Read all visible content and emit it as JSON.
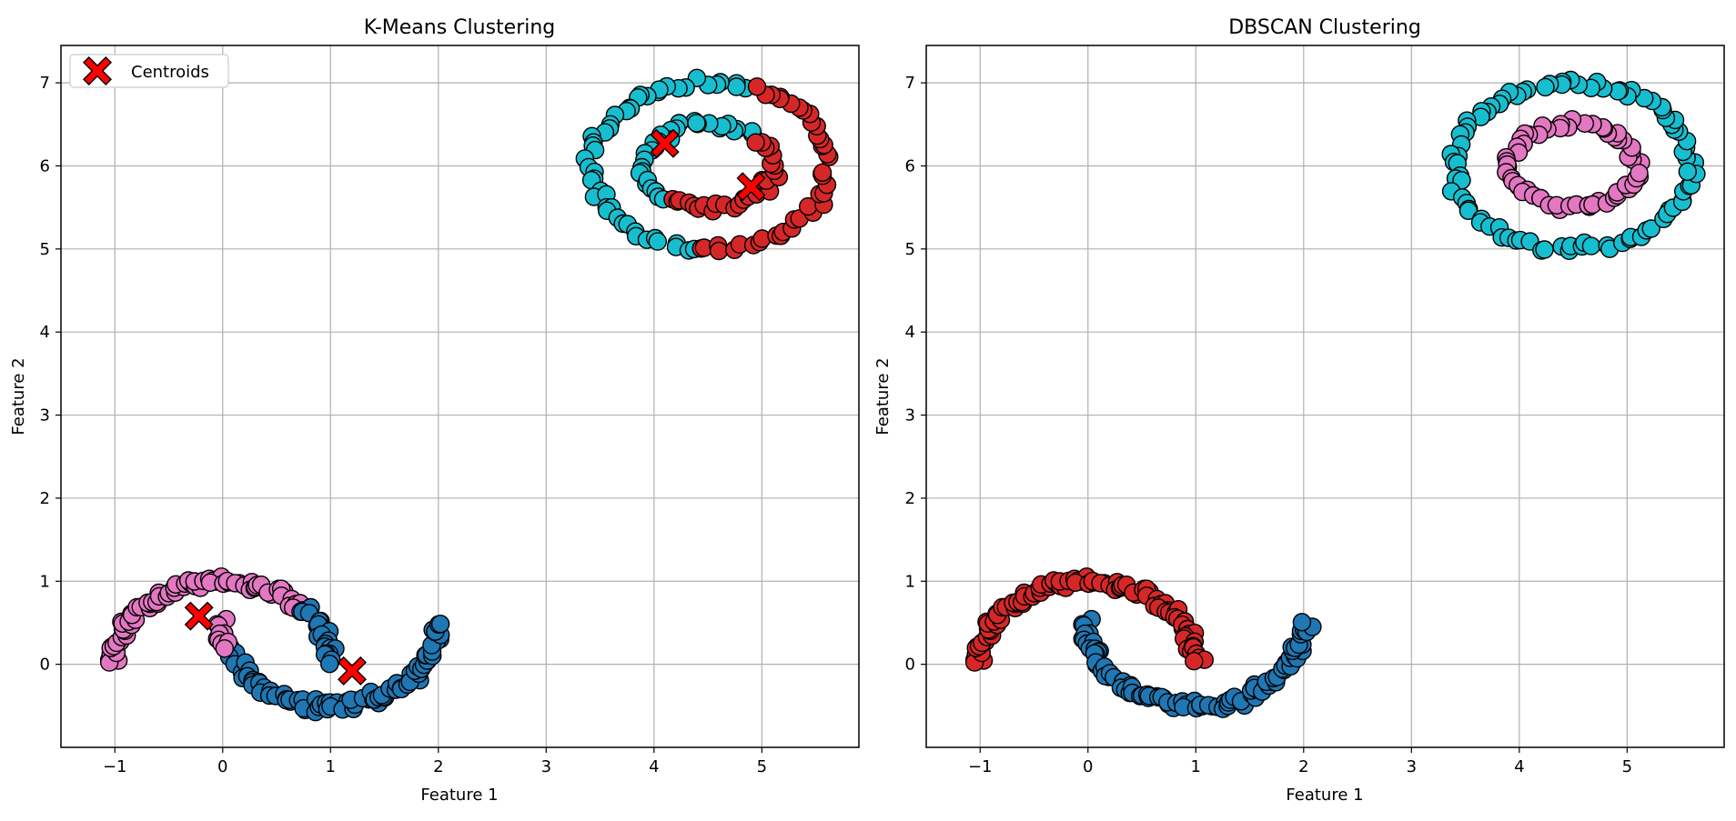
{
  "colors": {
    "blue": "#1f77b4",
    "pink": "#e377c2",
    "red": "#d62728",
    "cyan": "#17becf",
    "centroid": "#ff0000",
    "grid": "#b0b0b0"
  },
  "chart_data": [
    {
      "type": "scatter",
      "title": "K-Means Clustering",
      "xlabel": "Feature 1",
      "ylabel": "Feature 2",
      "xlim": [
        -1.5,
        5.9
      ],
      "ylim": [
        -1.0,
        7.45
      ],
      "xticks": [
        -1,
        0,
        1,
        2,
        3,
        4,
        5
      ],
      "yticks": [
        0,
        1,
        2,
        3,
        4,
        5,
        6,
        7
      ],
      "grid": true,
      "legend": {
        "placement": "top-left",
        "entries": [
          "Centroids"
        ]
      },
      "point_groups": [
        {
          "color": "pink",
          "shape": "moon_upper",
          "t_range": [
            0.0,
            0.78
          ]
        },
        {
          "color": "blue",
          "shape": "moon_upper",
          "t_range": [
            0.78,
            1.0
          ]
        },
        {
          "color": "blue",
          "shape": "moon_lower",
          "t_range": [
            0.1,
            1.0
          ]
        },
        {
          "color": "pink",
          "shape": "moon_lower",
          "t_range": [
            0.0,
            0.1
          ]
        },
        {
          "color": "cyan",
          "shape": "ring_outer",
          "angle_range": [
            70,
            265
          ]
        },
        {
          "color": "red",
          "shape": "ring_outer",
          "angle_range": [
            265,
            430
          ]
        },
        {
          "color": "cyan",
          "shape": "ring_inner",
          "angle_range": [
            45,
            230
          ]
        },
        {
          "color": "red",
          "shape": "ring_inner",
          "angle_range": [
            230,
            405
          ]
        }
      ],
      "centroids": [
        {
          "x": -0.22,
          "y": 0.58
        },
        {
          "x": 1.2,
          "y": -0.08
        },
        {
          "x": 4.1,
          "y": 6.27
        },
        {
          "x": 4.9,
          "y": 5.75
        }
      ]
    },
    {
      "type": "scatter",
      "title": "DBSCAN Clustering",
      "xlabel": "Feature 1",
      "ylabel": "Feature 2",
      "xlim": [
        -1.5,
        5.9
      ],
      "ylim": [
        -1.0,
        7.45
      ],
      "xticks": [
        -1,
        0,
        1,
        2,
        3,
        4,
        5
      ],
      "yticks": [
        0,
        1,
        2,
        3,
        4,
        5,
        6,
        7
      ],
      "grid": true,
      "point_groups": [
        {
          "color": "red",
          "shape": "moon_upper",
          "t_range": [
            0.0,
            1.0
          ]
        },
        {
          "color": "blue",
          "shape": "moon_lower",
          "t_range": [
            0.0,
            1.0
          ]
        },
        {
          "color": "cyan",
          "shape": "ring_outer",
          "angle_range": [
            0,
            360
          ]
        },
        {
          "color": "pink",
          "shape": "ring_inner",
          "angle_range": [
            0,
            360
          ]
        }
      ],
      "centroids": []
    }
  ]
}
